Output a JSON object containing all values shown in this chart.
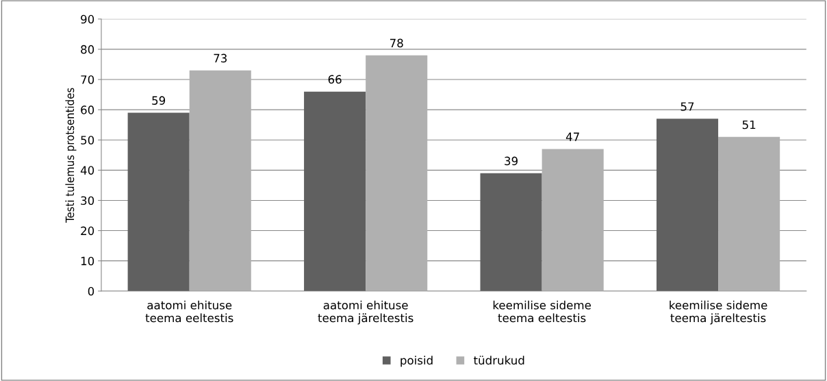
{
  "chart_data": {
    "type": "bar",
    "ylabel": "Testi tulemus protsentides",
    "categories": [
      "aatomi ehituse\nteema eeltestis",
      "aatomi ehituse\nteema järeltestis",
      "keemilise sideme\nteema eeltestis",
      "keemilise sideme\nteema järeltestis"
    ],
    "series": [
      {
        "name": "poisid",
        "color": "#606060",
        "values": [
          59,
          66,
          39,
          57
        ]
      },
      {
        "name": "tüdrukud",
        "color": "#b0b0b0",
        "values": [
          73,
          78,
          47,
          51
        ]
      }
    ],
    "ylim": [
      0,
      90
    ],
    "yticks": [
      0,
      10,
      20,
      30,
      40,
      50,
      60,
      70,
      80,
      90
    ],
    "grid": "y",
    "legend": "bottom",
    "data_labels": true
  }
}
